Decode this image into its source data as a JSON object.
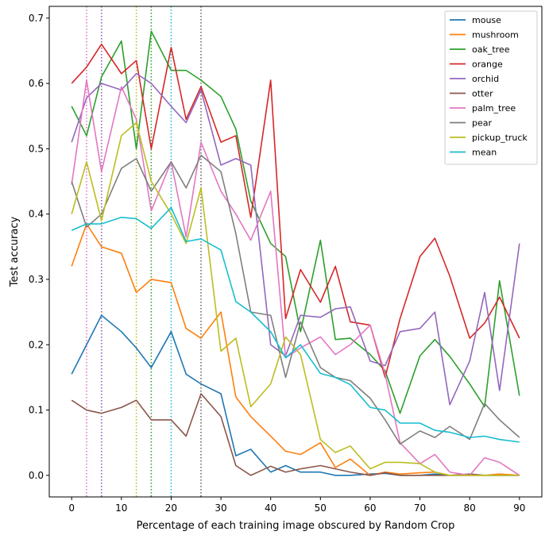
{
  "chart_data": {
    "type": "line",
    "title": "",
    "xlabel": "Percentage of each training image obscured by Random Crop",
    "ylabel": "Test accuracy",
    "xlim": [
      -4.5,
      94.5
    ],
    "ylim": [
      -0.033,
      0.718
    ],
    "xticks": [
      0,
      10,
      20,
      30,
      40,
      50,
      60,
      70,
      80,
      90
    ],
    "yticks": [
      0.0,
      0.1,
      0.2,
      0.3,
      0.4,
      0.5,
      0.6,
      0.7
    ],
    "legend_position": "top-right",
    "x": [
      0,
      3,
      6,
      10,
      13,
      16,
      20,
      23,
      26,
      30,
      33,
      36,
      40,
      43,
      46,
      50,
      53,
      56,
      60,
      63,
      66,
      70,
      73,
      76,
      80,
      83,
      86,
      90
    ],
    "series": [
      {
        "name": "mouse",
        "color": "#1f77b4",
        "values": [
          0.155,
          0.2,
          0.245,
          0.22,
          0.195,
          0.165,
          0.22,
          0.155,
          0.14,
          0.125,
          0.03,
          0.04,
          0.005,
          0.015,
          0.005,
          0.005,
          0.0,
          0.0,
          0.002,
          0.003,
          0.0,
          0.0,
          0.002,
          0.0,
          0.0,
          0.0,
          0.0,
          0.0
        ]
      },
      {
        "name": "mushroom",
        "color": "#ff7f0e",
        "values": [
          0.32,
          0.385,
          0.35,
          0.34,
          0.28,
          0.3,
          0.295,
          0.225,
          0.21,
          0.25,
          0.12,
          0.09,
          0.06,
          0.037,
          0.032,
          0.05,
          0.012,
          0.025,
          0.0,
          0.005,
          0.002,
          0.004,
          0.005,
          0.0,
          0.0,
          0.0,
          0.002,
          0.0
        ]
      },
      {
        "name": "oak_tree",
        "color": "#2ca02c",
        "values": [
          0.565,
          0.52,
          0.61,
          0.665,
          0.5,
          0.68,
          0.62,
          0.62,
          0.605,
          0.58,
          0.53,
          0.42,
          0.355,
          0.335,
          0.22,
          0.36,
          0.208,
          0.21,
          0.185,
          0.16,
          0.095,
          0.183,
          0.208,
          0.182,
          0.14,
          0.105,
          0.298,
          0.122
        ]
      },
      {
        "name": "orange",
        "color": "#d62728",
        "values": [
          0.6,
          0.625,
          0.66,
          0.615,
          0.635,
          0.5,
          0.655,
          0.545,
          0.595,
          0.51,
          0.52,
          0.395,
          0.605,
          0.24,
          0.315,
          0.265,
          0.32,
          0.235,
          0.23,
          0.15,
          0.24,
          0.335,
          0.363,
          0.305,
          0.21,
          0.233,
          0.273,
          0.21
        ]
      },
      {
        "name": "orchid",
        "color": "#9467bd",
        "values": [
          0.51,
          0.578,
          0.6,
          0.59,
          0.615,
          0.6,
          0.565,
          0.54,
          0.59,
          0.475,
          0.485,
          0.475,
          0.2,
          0.183,
          0.245,
          0.242,
          0.255,
          0.258,
          0.175,
          0.168,
          0.22,
          0.225,
          0.25,
          0.108,
          0.175,
          0.28,
          0.13,
          0.355
        ]
      },
      {
        "name": "otter",
        "color": "#8c564b",
        "values": [
          0.115,
          0.1,
          0.095,
          0.104,
          0.115,
          0.085,
          0.085,
          0.06,
          0.125,
          0.09,
          0.015,
          0.0,
          0.014,
          0.005,
          0.01,
          0.015,
          0.01,
          0.005,
          0.0,
          0.004,
          0.0,
          0.0,
          0.0,
          0.0,
          0.002,
          0.0,
          0.0,
          0.0
        ]
      },
      {
        "name": "palm_tree",
        "color": "#e377c2",
        "values": [
          0.445,
          0.605,
          0.465,
          0.595,
          0.545,
          0.405,
          0.48,
          0.365,
          0.51,
          0.435,
          0.4,
          0.36,
          0.435,
          0.18,
          0.195,
          0.212,
          0.185,
          0.2,
          0.23,
          0.155,
          0.05,
          0.018,
          0.032,
          0.005,
          0.0,
          0.027,
          0.02,
          0.0
        ]
      },
      {
        "name": "pear",
        "color": "#7f7f7f",
        "values": [
          0.45,
          0.38,
          0.4,
          0.47,
          0.485,
          0.435,
          0.48,
          0.44,
          0.49,
          0.465,
          0.37,
          0.25,
          0.245,
          0.15,
          0.235,
          0.165,
          0.15,
          0.145,
          0.118,
          0.085,
          0.048,
          0.068,
          0.058,
          0.075,
          0.055,
          0.11,
          0.085,
          0.058
        ]
      },
      {
        "name": "pickup_truck",
        "color": "#bcbd22",
        "values": [
          0.4,
          0.48,
          0.39,
          0.52,
          0.54,
          0.45,
          0.4,
          0.355,
          0.44,
          0.19,
          0.21,
          0.105,
          0.14,
          0.212,
          0.185,
          0.055,
          0.035,
          0.045,
          0.01,
          0.02,
          0.02,
          0.018,
          0.005,
          0.0,
          0.0,
          0.0,
          0.0,
          0.0
        ]
      },
      {
        "name": "mean",
        "color": "#17becf",
        "values": [
          0.375,
          0.385,
          0.385,
          0.395,
          0.393,
          0.378,
          0.41,
          0.358,
          0.362,
          0.345,
          0.266,
          0.25,
          0.22,
          0.18,
          0.2,
          0.156,
          0.15,
          0.139,
          0.104,
          0.1,
          0.08,
          0.08,
          0.069,
          0.066,
          0.058,
          0.06,
          0.055,
          0.051
        ]
      }
    ],
    "vlines": [
      {
        "x": 3,
        "color": "#e377c2"
      },
      {
        "x": 6,
        "color": "#d62728"
      },
      {
        "x": 6,
        "color": "#9467bd"
      },
      {
        "x": 13,
        "color": "#bcbd22"
      },
      {
        "x": 16,
        "color": "#2ca02c"
      },
      {
        "x": 20,
        "color": "#17becf"
      },
      {
        "x": 26,
        "color": "#8c564b"
      },
      {
        "x": 26,
        "color": "#7f7f7f"
      }
    ]
  }
}
